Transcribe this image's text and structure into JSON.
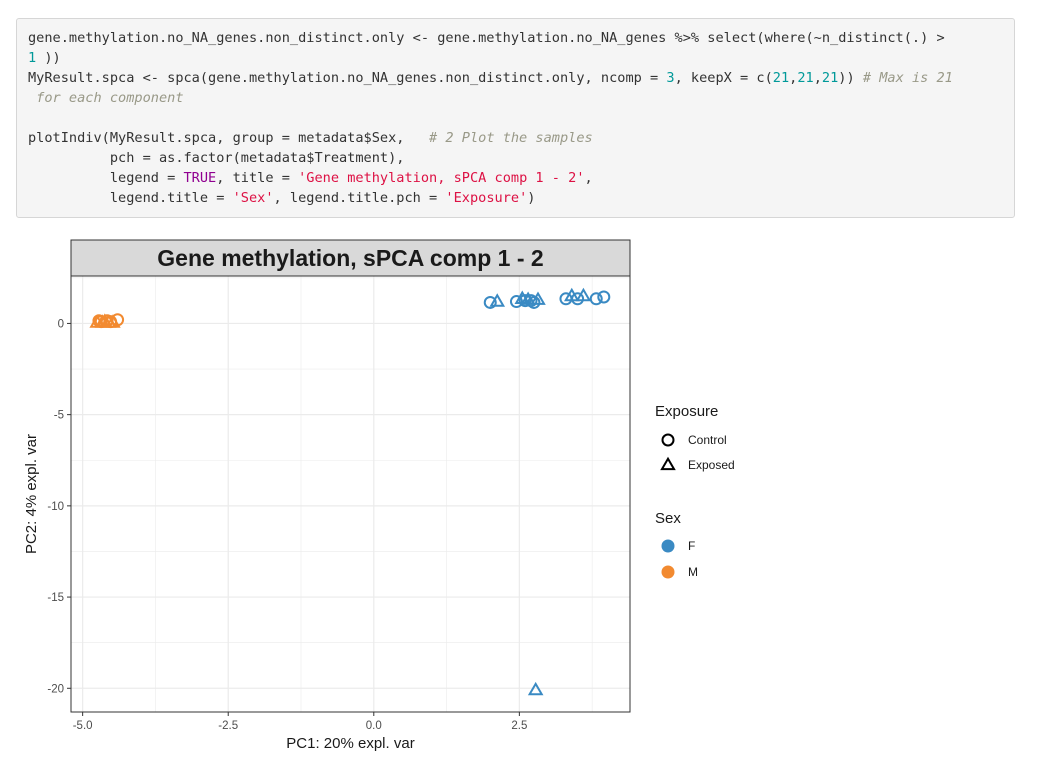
{
  "code": {
    "lines": [
      [
        {
          "t": "plain",
          "v": "gene.methylation.no_NA_genes.non_distinct.only <- gene.methylation.no_NA_genes %>% select(where(~n_distinct(.) >"
        }
      ],
      [
        {
          "t": "num",
          "v": "1"
        },
        {
          "t": "plain",
          "v": " ))"
        }
      ],
      [
        {
          "t": "plain",
          "v": "MyResult.spca <- spca(gene.methylation.no_NA_genes.non_distinct.only, ncomp = "
        },
        {
          "t": "num",
          "v": "3"
        },
        {
          "t": "plain",
          "v": ", keepX = c("
        },
        {
          "t": "num",
          "v": "21"
        },
        {
          "t": "plain",
          "v": ","
        },
        {
          "t": "num",
          "v": "21"
        },
        {
          "t": "plain",
          "v": ","
        },
        {
          "t": "num",
          "v": "21"
        },
        {
          "t": "plain",
          "v": ")) "
        },
        {
          "t": "cm",
          "v": "# Max is 21"
        }
      ],
      [
        {
          "t": "cm",
          "v": " for each component"
        }
      ],
      [
        {
          "t": "plain",
          "v": ""
        }
      ],
      [
        {
          "t": "plain",
          "v": "plotIndiv(MyResult.spca, group = metadata$Sex,   "
        },
        {
          "t": "cm",
          "v": "# 2 Plot the samples"
        }
      ],
      [
        {
          "t": "plain",
          "v": "          pch = as.factor(metadata$Treatment),"
        }
      ],
      [
        {
          "t": "plain",
          "v": "          legend = "
        },
        {
          "t": "kw",
          "v": "TRUE"
        },
        {
          "t": "plain",
          "v": ", title = "
        },
        {
          "t": "str",
          "v": "'Gene methylation, sPCA comp 1 - 2'"
        },
        {
          "t": "plain",
          "v": ","
        }
      ],
      [
        {
          "t": "plain",
          "v": "          legend.title = "
        },
        {
          "t": "str",
          "v": "'Sex'"
        },
        {
          "t": "plain",
          "v": ", legend.title.pch = "
        },
        {
          "t": "str",
          "v": "'Exposure'"
        },
        {
          "t": "plain",
          "v": ")"
        }
      ]
    ]
  },
  "colors": {
    "F": "#3a8ac3",
    "M": "#f28a30",
    "strip": "#d9d9d9",
    "grid": "#ebebeb"
  },
  "chart_data": {
    "type": "scatter",
    "title": "Gene methylation, sPCA comp 1 - 2",
    "xlabel": "PC1: 20% expl. var",
    "ylabel": "PC2: 4% expl. var",
    "xlim": [
      -5.2,
      4.4
    ],
    "ylim": [
      -21.3,
      2.6
    ],
    "xticks": [
      -5,
      -2.5,
      0,
      2.5
    ],
    "xtick_labels": [
      "-5.0",
      "-2.5",
      "0.0",
      "2.5"
    ],
    "yticks": [
      0,
      -5,
      -10,
      -15,
      -20
    ],
    "ytick_labels": [
      "0",
      "-5",
      "-10",
      "-15",
      "-20"
    ],
    "grid": true,
    "legend_position": "right",
    "legends": {
      "shape": {
        "title": "Exposure",
        "items": [
          {
            "label": "Control",
            "shape": "circle"
          },
          {
            "label": "Exposed",
            "shape": "triangle"
          }
        ]
      },
      "color": {
        "title": "Sex",
        "items": [
          {
            "label": "F",
            "group": "F"
          },
          {
            "label": "M",
            "group": "M"
          }
        ]
      }
    },
    "points": [
      {
        "x": -4.75,
        "y": 0.05,
        "group": "M",
        "shape": "triangle"
      },
      {
        "x": -4.72,
        "y": 0.15,
        "group": "M",
        "shape": "circle"
      },
      {
        "x": -4.68,
        "y": 0.1,
        "group": "M",
        "shape": "circle"
      },
      {
        "x": -4.66,
        "y": 0.05,
        "group": "M",
        "shape": "triangle"
      },
      {
        "x": -4.62,
        "y": 0.1,
        "group": "M",
        "shape": "triangle"
      },
      {
        "x": -4.58,
        "y": 0.15,
        "group": "M",
        "shape": "circle"
      },
      {
        "x": -4.55,
        "y": 0.05,
        "group": "M",
        "shape": "triangle"
      },
      {
        "x": -4.52,
        "y": 0.1,
        "group": "M",
        "shape": "circle"
      },
      {
        "x": -4.48,
        "y": 0.05,
        "group": "M",
        "shape": "triangle"
      },
      {
        "x": -4.4,
        "y": 0.2,
        "group": "M",
        "shape": "circle"
      },
      {
        "x": 2.0,
        "y": 1.15,
        "group": "F",
        "shape": "circle"
      },
      {
        "x": 2.12,
        "y": 1.2,
        "group": "F",
        "shape": "triangle"
      },
      {
        "x": 2.45,
        "y": 1.2,
        "group": "F",
        "shape": "circle"
      },
      {
        "x": 2.55,
        "y": 1.35,
        "group": "F",
        "shape": "triangle"
      },
      {
        "x": 2.6,
        "y": 1.25,
        "group": "F",
        "shape": "circle"
      },
      {
        "x": 2.65,
        "y": 1.3,
        "group": "F",
        "shape": "triangle"
      },
      {
        "x": 2.7,
        "y": 1.25,
        "group": "F",
        "shape": "circle"
      },
      {
        "x": 2.75,
        "y": 1.15,
        "group": "F",
        "shape": "circle"
      },
      {
        "x": 2.82,
        "y": 1.3,
        "group": "F",
        "shape": "triangle"
      },
      {
        "x": 3.3,
        "y": 1.35,
        "group": "F",
        "shape": "circle"
      },
      {
        "x": 3.4,
        "y": 1.5,
        "group": "F",
        "shape": "triangle"
      },
      {
        "x": 3.5,
        "y": 1.35,
        "group": "F",
        "shape": "circle"
      },
      {
        "x": 3.6,
        "y": 1.5,
        "group": "F",
        "shape": "triangle"
      },
      {
        "x": 3.82,
        "y": 1.35,
        "group": "F",
        "shape": "circle"
      },
      {
        "x": 3.95,
        "y": 1.45,
        "group": "F",
        "shape": "circle"
      },
      {
        "x": 2.78,
        "y": -20.1,
        "group": "F",
        "shape": "triangle"
      }
    ]
  }
}
